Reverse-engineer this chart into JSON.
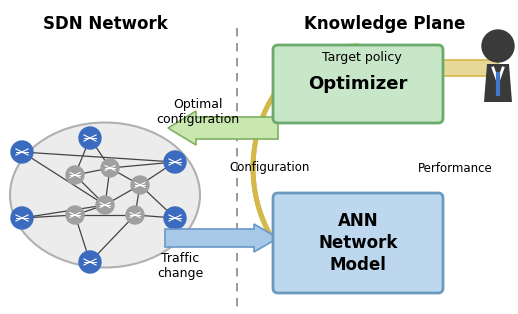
{
  "title_left": "SDN Network",
  "title_right": "Knowledge Plane",
  "box_optimizer_label": "Optimizer",
  "box_ann_label": "ANN\nNetwork\nModel",
  "box_optimizer_color": "#c8e6c8",
  "box_ann_color": "#bdd7ee",
  "box_optimizer_edge": "#6aaa6a",
  "box_ann_edge": "#6a9abf",
  "arrow_color_green": "#c8e8b0",
  "arrow_color_green_edge": "#80b060",
  "arrow_color_yellow": "#d4b84a",
  "arrow_color_yellow_fill": "#e8d898",
  "arrow_color_blue": "#a8c8e8",
  "arrow_color_blue_edge": "#6898c8",
  "dashed_line_color": "#888888",
  "text_optimal_config": "Optimal\nconfiguration",
  "text_traffic_change": "Traffic\nchange",
  "text_target_policy": "Target policy",
  "text_configuration": "Configuration",
  "text_performance": "Performance",
  "bg_color": "#ffffff",
  "ellipse_face": "#ececec",
  "ellipse_edge": "#b0b0b0",
  "node_blue": "#3a6bbf",
  "node_blue_edge": "#2a4a9f",
  "node_gray": "#a0a0a0",
  "node_gray_edge": "#707070"
}
